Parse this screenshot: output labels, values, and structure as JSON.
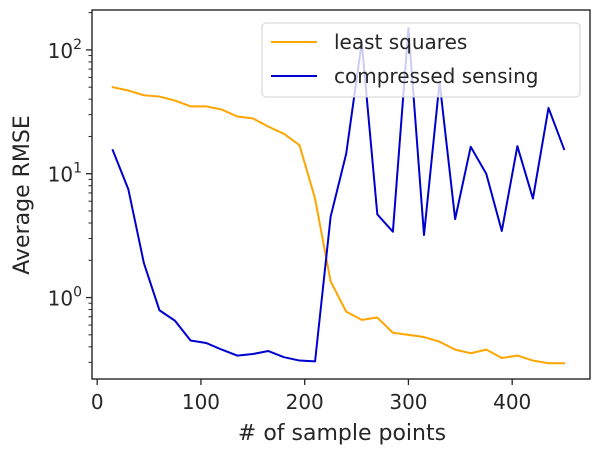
{
  "chart_data": {
    "type": "line",
    "xlabel": "# of sample points",
    "ylabel": "Average RMSE",
    "xlim": [
      -5,
      475
    ],
    "ylim": [
      0.22,
      210
    ],
    "yscale": "log",
    "grid": false,
    "legend_position": "top-right",
    "x_ticks": [
      {
        "value": 0,
        "label": "0"
      },
      {
        "value": 100,
        "label": "100"
      },
      {
        "value": 200,
        "label": "200"
      },
      {
        "value": 300,
        "label": "300"
      },
      {
        "value": 400,
        "label": "400"
      }
    ],
    "y_ticks": [
      {
        "value": 1,
        "base": "10",
        "exp": "0"
      },
      {
        "value": 10,
        "base": "10",
        "exp": "1"
      },
      {
        "value": 100,
        "base": "10",
        "exp": "2"
      }
    ],
    "series": [
      {
        "name": "least squares",
        "color": "#ffa500",
        "x": [
          15,
          30,
          45,
          60,
          75,
          90,
          105,
          120,
          135,
          150,
          165,
          180,
          195,
          210,
          225,
          240,
          255,
          270,
          285,
          300,
          315,
          330,
          345,
          360,
          375,
          390,
          405,
          420,
          435,
          450
        ],
        "y": [
          50,
          47,
          43,
          42,
          39,
          35,
          35,
          33,
          29,
          28,
          24,
          21,
          17,
          6.3,
          1.35,
          0.77,
          0.66,
          0.69,
          0.52,
          0.5,
          0.48,
          0.44,
          0.38,
          0.355,
          0.38,
          0.325,
          0.34,
          0.31,
          0.295,
          0.295
        ]
      },
      {
        "name": "compressed sensing",
        "color": "#0000cd",
        "x": [
          15,
          30,
          45,
          60,
          75,
          90,
          105,
          120,
          135,
          150,
          165,
          180,
          195,
          210,
          225,
          240,
          255,
          270,
          285,
          300,
          315,
          330,
          345,
          360,
          375,
          390,
          405,
          420,
          435,
          450
        ],
        "y": [
          15.5,
          7.5,
          1.9,
          0.79,
          0.65,
          0.45,
          0.43,
          0.38,
          0.34,
          0.35,
          0.37,
          0.33,
          0.31,
          0.305,
          4.5,
          14.5,
          115,
          4.7,
          3.4,
          150,
          3.2,
          55,
          4.3,
          16.5,
          10,
          3.45,
          16.7,
          6.3,
          34,
          15.8
        ]
      }
    ]
  }
}
